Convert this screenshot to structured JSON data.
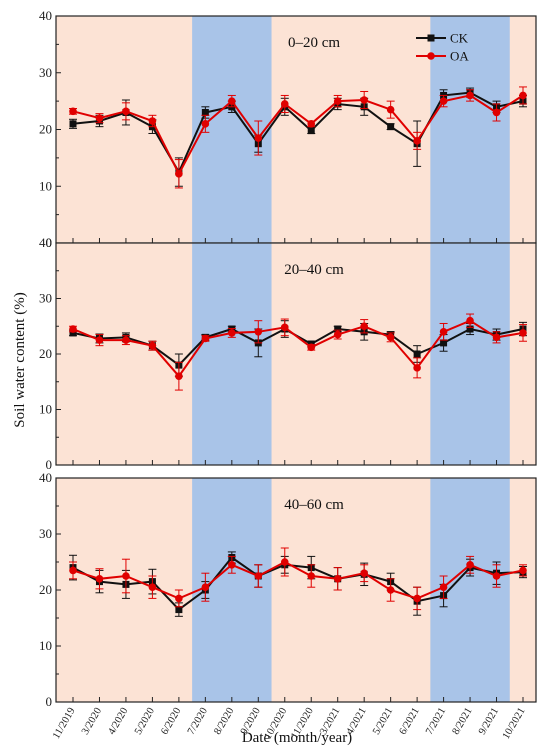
{
  "colors": {
    "background_season": "#fce3d5",
    "wet_season": "#a9c4e8",
    "ck_series": "#111111",
    "oa_series": "#e00000"
  },
  "chart_data": {
    "type": "line",
    "x_categories": [
      "11/2019",
      "3/2020",
      "4/2020",
      "5/2020",
      "6/2020",
      "7/2020",
      "8/2020",
      "9/2020",
      "10/2020",
      "11/2020",
      "3/2021",
      "4/2021",
      "5/2021",
      "6/2021",
      "7/2021",
      "8/2021",
      "9/2021",
      "10/2021"
    ],
    "xlabel": "Date (month/year)",
    "ylabel": "Soil water content (%)",
    "ylim": [
      0,
      40
    ],
    "yticks": [
      "0",
      "10",
      "20",
      "30",
      "40"
    ],
    "shaded_ranges": [
      {
        "from": "6/2020",
        "to": "9/2020"
      },
      {
        "from": "6/2021",
        "to": "9/2021"
      }
    ],
    "legend": [
      "CK",
      "OA"
    ],
    "legend_position": "top-right",
    "panels": [
      {
        "label": "0–20 cm",
        "series": [
          {
            "name": "CK",
            "marker": "square",
            "values": [
              21.0,
              21.5,
              23.0,
              20.5,
              12.5,
              23.0,
              24.0,
              17.5,
              24.0,
              19.8,
              24.5,
              24.0,
              20.5,
              17.5,
              26.0,
              26.5,
              24.0,
              25.0
            ],
            "errors": [
              0.8,
              1.0,
              2.2,
              1.2,
              2.5,
              1.0,
              1.0,
              1.5,
              1.5,
              0.5,
              1.0,
              1.5,
              0.5,
              4.0,
              1.0,
              0.8,
              1.0,
              1.0
            ]
          },
          {
            "name": "OA",
            "marker": "circle",
            "values": [
              23.2,
              22.0,
              23.2,
              21.5,
              12.2,
              21.0,
              25.0,
              18.5,
              24.5,
              21.0,
              25.0,
              25.2,
              23.5,
              18.0,
              25.0,
              26.0,
              23.0,
              26.0
            ],
            "errors": [
              0.5,
              0.8,
              1.5,
              1.0,
              2.5,
              1.5,
              1.0,
              3.0,
              1.5,
              0.5,
              1.0,
              1.5,
              1.5,
              1.5,
              1.0,
              1.0,
              1.5,
              1.5
            ]
          }
        ]
      },
      {
        "label": "20–40 cm",
        "series": [
          {
            "name": "CK",
            "marker": "square",
            "values": [
              23.8,
              22.8,
              23.0,
              21.5,
              18.0,
              23.0,
              24.5,
              22.0,
              24.5,
              21.8,
              24.5,
              24.0,
              23.5,
              20.0,
              22.0,
              24.5,
              23.5,
              24.5
            ],
            "errors": [
              0.5,
              0.8,
              0.8,
              0.8,
              2.0,
              0.5,
              0.5,
              2.5,
              1.5,
              0.5,
              0.5,
              1.5,
              0.5,
              1.5,
              1.5,
              1.0,
              1.0,
              1.2
            ]
          },
          {
            "name": "OA",
            "marker": "circle",
            "values": [
              24.5,
              22.5,
              22.5,
              21.5,
              16.0,
              22.8,
              23.8,
              24.0,
              24.8,
              21.2,
              23.5,
              25.0,
              23.0,
              17.5,
              24.0,
              26.0,
              23.0,
              23.8
            ],
            "errors": [
              0.5,
              1.0,
              0.8,
              0.8,
              2.5,
              0.5,
              0.8,
              2.0,
              1.5,
              0.5,
              0.8,
              1.2,
              0.8,
              1.8,
              1.5,
              1.2,
              1.0,
              1.5
            ]
          }
        ]
      },
      {
        "label": "40–60 cm",
        "series": [
          {
            "name": "CK",
            "marker": "square",
            "values": [
              24.0,
              21.5,
              21.0,
              21.5,
              16.5,
              20.0,
              25.8,
              22.5,
              24.5,
              24.0,
              22.0,
              22.8,
              21.5,
              18.0,
              19.0,
              24.0,
              23.0,
              23.2
            ],
            "errors": [
              2.2,
              2.0,
              2.5,
              2.2,
              1.2,
              1.5,
              1.0,
              2.0,
              1.5,
              2.0,
              2.0,
              2.0,
              1.5,
              2.5,
              2.0,
              1.5,
              2.0,
              1.0
            ]
          },
          {
            "name": "OA",
            "marker": "circle",
            "values": [
              23.5,
              22.0,
              22.5,
              20.5,
              18.5,
              20.5,
              24.5,
              22.5,
              25.0,
              22.5,
              22.0,
              23.0,
              20.0,
              18.5,
              20.5,
              24.5,
              22.5,
              23.5
            ],
            "errors": [
              1.5,
              1.8,
              3.0,
              2.0,
              1.5,
              2.5,
              1.5,
              2.0,
              2.5,
              2.0,
              2.0,
              1.5,
              2.0,
              2.0,
              2.0,
              1.5,
              2.0,
              1.0
            ]
          }
        ]
      }
    ]
  }
}
